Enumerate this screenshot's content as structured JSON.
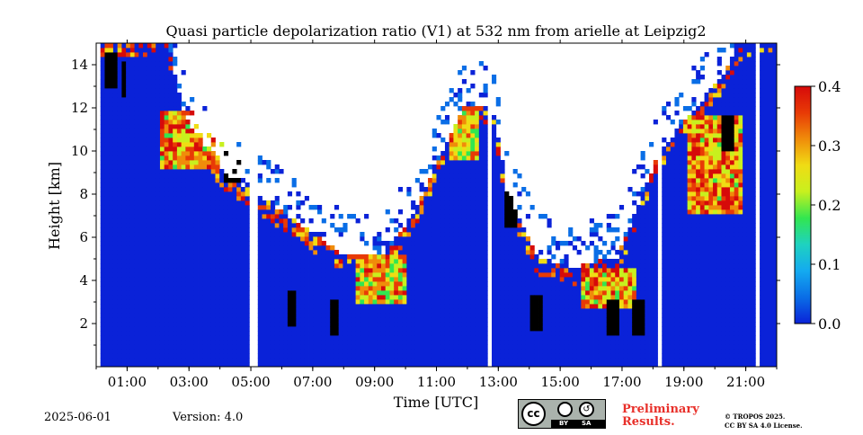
{
  "chart_data": {
    "type": "heatmap",
    "title": "Quasi particle depolarization ratio (V1) at 532 nm from arielle at Leipzig2",
    "xlabel": "Time [UTC]",
    "ylabel": "Height [km]",
    "xlim": [
      0,
      22
    ],
    "ylim": [
      0,
      15
    ],
    "x_ticks": [
      {
        "value": 1,
        "label": "01:00"
      },
      {
        "value": 3,
        "label": "03:00"
      },
      {
        "value": 5,
        "label": "05:00"
      },
      {
        "value": 7,
        "label": "07:00"
      },
      {
        "value": 9,
        "label": "09:00"
      },
      {
        "value": 11,
        "label": "11:00"
      },
      {
        "value": 13,
        "label": "13:00"
      },
      {
        "value": 15,
        "label": "15:00"
      },
      {
        "value": 17,
        "label": "17:00"
      },
      {
        "value": 19,
        "label": "19:00"
      },
      {
        "value": 21,
        "label": "21:00"
      }
    ],
    "y_ticks": [
      {
        "value": 2,
        "label": "2"
      },
      {
        "value": 4,
        "label": "4"
      },
      {
        "value": 6,
        "label": "6"
      },
      {
        "value": 8,
        "label": "8"
      },
      {
        "value": 10,
        "label": "10"
      },
      {
        "value": 12,
        "label": "12"
      },
      {
        "value": 14,
        "label": "14"
      }
    ],
    "colorbar": {
      "range": [
        0.0,
        0.4
      ],
      "ticks": [
        {
          "value": 0.0,
          "label": "0.0"
        },
        {
          "value": 0.1,
          "label": "0.1"
        },
        {
          "value": 0.2,
          "label": "0.2"
        },
        {
          "value": 0.3,
          "label": "0.3"
        },
        {
          "value": 0.4,
          "label": "0.4"
        }
      ],
      "colors": [
        "#0a22d8",
        "#0a6ee6",
        "#14aaf0",
        "#1ed2c0",
        "#32e650",
        "#c8f01e",
        "#f0dc14",
        "#f08c0a",
        "#e83a06",
        "#d60a0a"
      ]
    },
    "features": {
      "background_value": 0.02,
      "data_gaps_hours": [
        0.05,
        5.1,
        12.75,
        18.2,
        21.35
      ],
      "dust_layers": [
        {
          "t0": 2.0,
          "t1": 4.0,
          "h0": 9.0,
          "h1": 11.8,
          "value": 0.35
        },
        {
          "t0": 8.3,
          "t1": 10.0,
          "h0": 2.8,
          "h1": 5.0,
          "value": 0.32
        },
        {
          "t0": 11.3,
          "t1": 12.3,
          "h0": 9.5,
          "h1": 11.8,
          "value": 0.3
        },
        {
          "t0": 15.6,
          "t1": 17.4,
          "h0": 2.7,
          "h1": 4.5,
          "value": 0.33
        },
        {
          "t0": 19.0,
          "t1": 20.8,
          "h0": 7.0,
          "h1": 11.5,
          "value": 0.35
        }
      ]
    }
  },
  "footer": {
    "date": "2025-06-01",
    "version": "Version: 4.0",
    "preliminary_line1": "Preliminary",
    "preliminary_line2": "Results.",
    "copyright_line1": "© TROPOS 2025.",
    "copyright_line2": "CC BY SA 4.0 License.",
    "cc_badge": {
      "by": "BY",
      "sa": "SA"
    }
  }
}
